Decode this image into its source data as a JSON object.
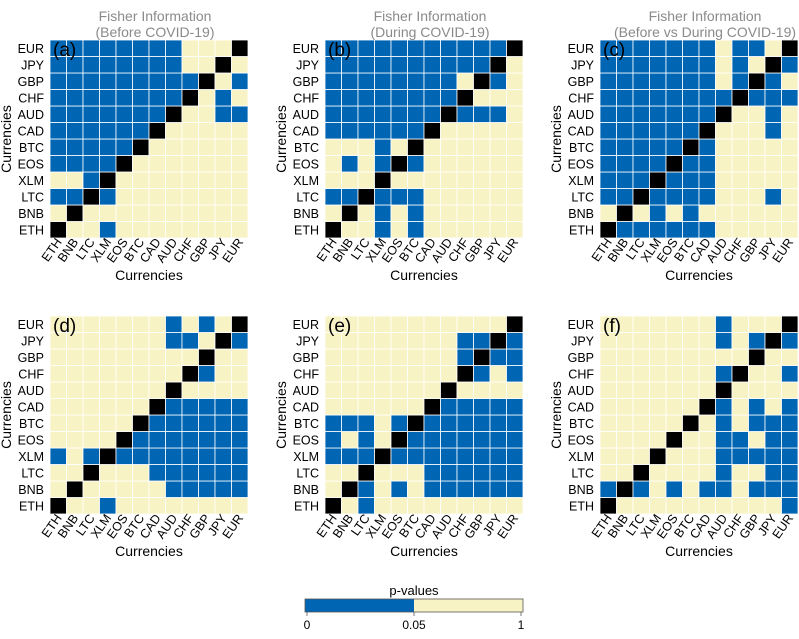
{
  "chart_data": {
    "type": "heatmap",
    "currencies": [
      "ETH",
      "BNB",
      "LTC",
      "XLM",
      "EOS",
      "BTC",
      "CAD",
      "AUD",
      "CHF",
      "GBP",
      "JPY",
      "EUR"
    ],
    "xlabel": "Currencies",
    "ylabel": "Currencies",
    "colors": {
      "significant": "#0066b3",
      "not_significant": "#f8f3c4",
      "diagonal": "#000000",
      "grid": "#ffffff"
    },
    "colorbar": {
      "title": "p-values",
      "ticks": [
        "0",
        "0.05",
        "1"
      ]
    },
    "panels": [
      {
        "label": "(a)",
        "title_line1": "Fisher Information",
        "title_line2": "(Before COVID-19)",
        "rows": [
          [
            1,
            0,
            0,
            1,
            0,
            0,
            0,
            0,
            0,
            0,
            0,
            0
          ],
          [
            0,
            1,
            0,
            0,
            0,
            0,
            0,
            0,
            0,
            0,
            0,
            0
          ],
          [
            1,
            1,
            1,
            1,
            0,
            0,
            0,
            0,
            0,
            0,
            0,
            0
          ],
          [
            0,
            0,
            1,
            1,
            0,
            0,
            0,
            0,
            0,
            0,
            0,
            0
          ],
          [
            1,
            1,
            1,
            1,
            1,
            0,
            0,
            0,
            0,
            0,
            0,
            0
          ],
          [
            1,
            1,
            1,
            1,
            1,
            1,
            0,
            0,
            0,
            0,
            0,
            0
          ],
          [
            1,
            1,
            1,
            1,
            1,
            1,
            1,
            0,
            0,
            0,
            0,
            0
          ],
          [
            1,
            1,
            1,
            1,
            1,
            1,
            1,
            1,
            0,
            0,
            1,
            1
          ],
          [
            1,
            1,
            1,
            1,
            1,
            1,
            1,
            1,
            1,
            0,
            1,
            0
          ],
          [
            1,
            1,
            1,
            1,
            1,
            1,
            1,
            1,
            1,
            1,
            0,
            1
          ],
          [
            1,
            1,
            1,
            1,
            1,
            1,
            1,
            1,
            0,
            0,
            1,
            0
          ],
          [
            1,
            1,
            1,
            1,
            1,
            1,
            1,
            1,
            0,
            0,
            0,
            1
          ]
        ]
      },
      {
        "label": "(b)",
        "title_line1": "Fisher Information",
        "title_line2": "(During COVID-19)",
        "rows": [
          [
            1,
            0,
            0,
            1,
            0,
            1,
            0,
            0,
            0,
            0,
            0,
            0
          ],
          [
            0,
            1,
            0,
            1,
            0,
            1,
            0,
            0,
            0,
            0,
            0,
            0
          ],
          [
            1,
            1,
            1,
            1,
            1,
            1,
            0,
            0,
            0,
            0,
            0,
            0
          ],
          [
            0,
            0,
            0,
            1,
            0,
            0,
            0,
            0,
            0,
            0,
            0,
            0
          ],
          [
            0,
            1,
            0,
            1,
            1,
            1,
            0,
            0,
            0,
            0,
            0,
            0
          ],
          [
            0,
            0,
            0,
            1,
            0,
            1,
            0,
            0,
            0,
            0,
            0,
            0
          ],
          [
            1,
            1,
            1,
            1,
            1,
            1,
            1,
            0,
            0,
            0,
            0,
            0
          ],
          [
            1,
            1,
            1,
            1,
            1,
            1,
            1,
            1,
            1,
            1,
            1,
            0
          ],
          [
            1,
            1,
            1,
            1,
            1,
            1,
            1,
            1,
            1,
            0,
            0,
            0
          ],
          [
            1,
            1,
            1,
            1,
            1,
            1,
            1,
            1,
            0,
            1,
            1,
            0
          ],
          [
            1,
            1,
            1,
            1,
            1,
            1,
            1,
            1,
            1,
            1,
            1,
            0
          ],
          [
            1,
            1,
            1,
            1,
            1,
            1,
            1,
            1,
            1,
            1,
            1,
            1
          ]
        ]
      },
      {
        "label": "(c)",
        "title_line1": "Fisher Information",
        "title_line2": "(Before vs During COVID-19)",
        "rows": [
          [
            1,
            1,
            1,
            1,
            1,
            1,
            1,
            0,
            0,
            0,
            0,
            0
          ],
          [
            0,
            0,
            0,
            1,
            0,
            1,
            0,
            0,
            0,
            0,
            0,
            0
          ],
          [
            1,
            1,
            1,
            1,
            1,
            1,
            1,
            0,
            0,
            0,
            1,
            0
          ],
          [
            1,
            1,
            1,
            1,
            1,
            1,
            1,
            0,
            0,
            0,
            0,
            0
          ],
          [
            1,
            1,
            1,
            1,
            1,
            1,
            1,
            0,
            0,
            0,
            0,
            0
          ],
          [
            1,
            1,
            1,
            1,
            1,
            1,
            1,
            0,
            0,
            0,
            0,
            0
          ],
          [
            1,
            1,
            1,
            1,
            1,
            1,
            1,
            0,
            0,
            0,
            1,
            0
          ],
          [
            1,
            1,
            1,
            1,
            1,
            1,
            1,
            0,
            0,
            0,
            1,
            0
          ],
          [
            1,
            1,
            1,
            1,
            1,
            1,
            1,
            1,
            1,
            1,
            1,
            1
          ],
          [
            1,
            1,
            1,
            1,
            1,
            1,
            1,
            0,
            1,
            0,
            1,
            0
          ],
          [
            1,
            1,
            1,
            1,
            1,
            1,
            1,
            0,
            1,
            0,
            1,
            1
          ],
          [
            1,
            1,
            1,
            1,
            1,
            1,
            1,
            0,
            1,
            1,
            0,
            0
          ]
        ]
      },
      {
        "label": "(d)",
        "title_line1": "",
        "title_line2": "",
        "rows": [
          [
            1,
            0,
            0,
            1,
            0,
            0,
            0,
            0,
            0,
            0,
            0,
            0
          ],
          [
            0,
            1,
            0,
            0,
            0,
            0,
            0,
            1,
            1,
            1,
            1,
            1
          ],
          [
            0,
            0,
            1,
            0,
            0,
            0,
            1,
            1,
            1,
            1,
            1,
            1
          ],
          [
            1,
            0,
            1,
            1,
            1,
            1,
            1,
            1,
            1,
            1,
            1,
            1
          ],
          [
            0,
            0,
            0,
            0,
            1,
            1,
            1,
            1,
            1,
            1,
            1,
            1
          ],
          [
            0,
            0,
            0,
            0,
            0,
            1,
            1,
            1,
            1,
            1,
            1,
            1
          ],
          [
            0,
            0,
            0,
            0,
            0,
            0,
            1,
            1,
            1,
            1,
            1,
            1
          ],
          [
            0,
            0,
            0,
            0,
            0,
            0,
            0,
            1,
            0,
            0,
            0,
            0
          ],
          [
            0,
            0,
            0,
            0,
            0,
            0,
            0,
            0,
            1,
            1,
            0,
            0
          ],
          [
            0,
            0,
            0,
            0,
            0,
            0,
            0,
            0,
            0,
            1,
            0,
            0
          ],
          [
            0,
            0,
            0,
            0,
            0,
            0,
            0,
            1,
            1,
            0,
            1,
            1
          ],
          [
            0,
            0,
            0,
            0,
            0,
            0,
            0,
            1,
            0,
            1,
            0,
            1
          ]
        ]
      },
      {
        "label": "(e)",
        "title_line1": "",
        "title_line2": "",
        "rows": [
          [
            1,
            0,
            1,
            0,
            0,
            0,
            0,
            0,
            0,
            0,
            0,
            0
          ],
          [
            0,
            1,
            1,
            0,
            1,
            0,
            1,
            1,
            1,
            1,
            1,
            1
          ],
          [
            0,
            0,
            1,
            0,
            0,
            0,
            1,
            1,
            1,
            1,
            1,
            1
          ],
          [
            1,
            1,
            1,
            1,
            1,
            1,
            1,
            1,
            1,
            1,
            1,
            1
          ],
          [
            1,
            0,
            1,
            0,
            1,
            1,
            1,
            1,
            1,
            1,
            1,
            1
          ],
          [
            1,
            1,
            1,
            0,
            1,
            1,
            1,
            1,
            1,
            1,
            1,
            1
          ],
          [
            0,
            0,
            0,
            0,
            0,
            0,
            1,
            1,
            1,
            1,
            1,
            1
          ],
          [
            0,
            0,
            0,
            0,
            0,
            0,
            0,
            1,
            0,
            0,
            0,
            0
          ],
          [
            0,
            0,
            0,
            0,
            0,
            0,
            0,
            0,
            1,
            1,
            0,
            1
          ],
          [
            0,
            0,
            0,
            0,
            0,
            0,
            0,
            0,
            1,
            1,
            1,
            1
          ],
          [
            0,
            0,
            0,
            0,
            0,
            0,
            0,
            0,
            1,
            1,
            1,
            1
          ],
          [
            0,
            0,
            0,
            0,
            0,
            0,
            0,
            0,
            0,
            0,
            0,
            1
          ]
        ]
      },
      {
        "label": "(f)",
        "title_line1": "",
        "title_line2": "",
        "rows": [
          [
            0,
            0,
            0,
            0,
            0,
            0,
            0,
            0,
            0,
            0,
            0,
            1
          ],
          [
            1,
            1,
            1,
            0,
            1,
            0,
            1,
            1,
            0,
            1,
            1,
            1
          ],
          [
            0,
            0,
            0,
            0,
            0,
            0,
            0,
            1,
            0,
            0,
            1,
            1
          ],
          [
            0,
            0,
            0,
            0,
            0,
            0,
            0,
            1,
            1,
            1,
            1,
            1
          ],
          [
            0,
            0,
            0,
            0,
            0,
            0,
            0,
            1,
            1,
            0,
            1,
            1
          ],
          [
            0,
            0,
            0,
            0,
            0,
            0,
            0,
            1,
            0,
            1,
            1,
            1
          ],
          [
            0,
            0,
            0,
            0,
            0,
            0,
            0,
            1,
            0,
            1,
            0,
            1
          ],
          [
            0,
            0,
            0,
            0,
            0,
            0,
            0,
            0,
            0,
            0,
            0,
            0
          ],
          [
            0,
            0,
            0,
            0,
            0,
            0,
            0,
            1,
            0,
            0,
            0,
            1
          ],
          [
            0,
            0,
            0,
            0,
            0,
            0,
            0,
            0,
            0,
            0,
            0,
            0
          ],
          [
            0,
            0,
            0,
            0,
            0,
            0,
            0,
            1,
            0,
            1,
            0,
            1
          ],
          [
            0,
            0,
            0,
            0,
            0,
            0,
            0,
            1,
            0,
            0,
            0,
            1
          ]
        ]
      }
    ]
  }
}
